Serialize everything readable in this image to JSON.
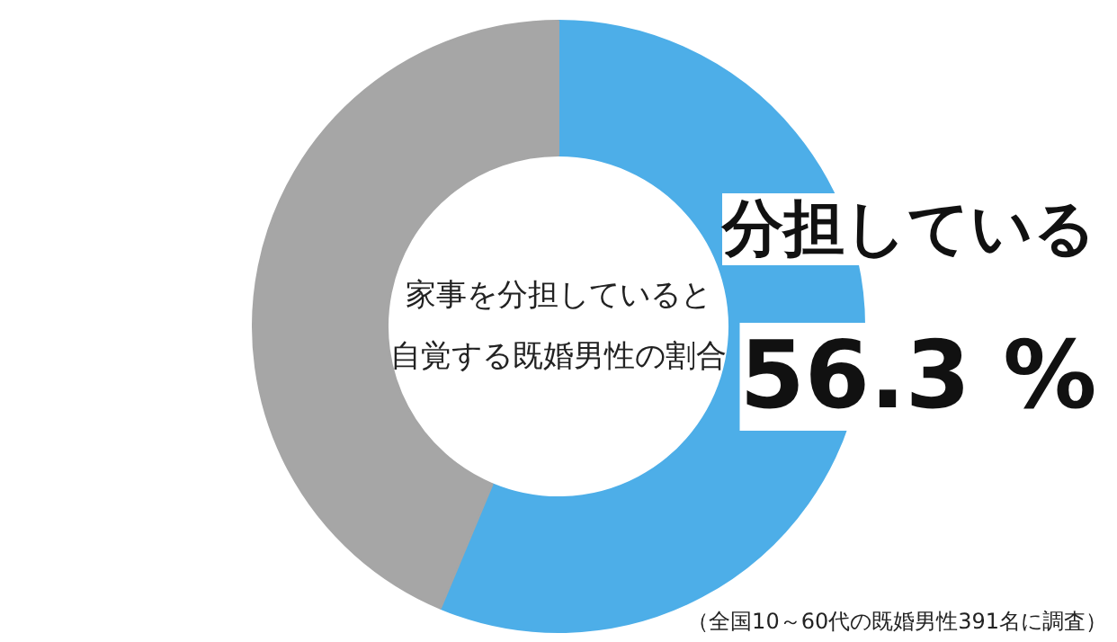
{
  "chart_data": {
    "type": "donut",
    "title": "家事を分担していると自覚する既婚男性の割合",
    "categories": [
      "分担している",
      null
    ],
    "values": [
      56.3,
      43.7
    ],
    "colors": [
      "#4daee8",
      "#a6a6a6"
    ],
    "value_labels": [
      "56.3 %",
      null
    ],
    "annotations": [
      "（全国10～60代の既婚男性391名に調査）"
    ]
  }
}
